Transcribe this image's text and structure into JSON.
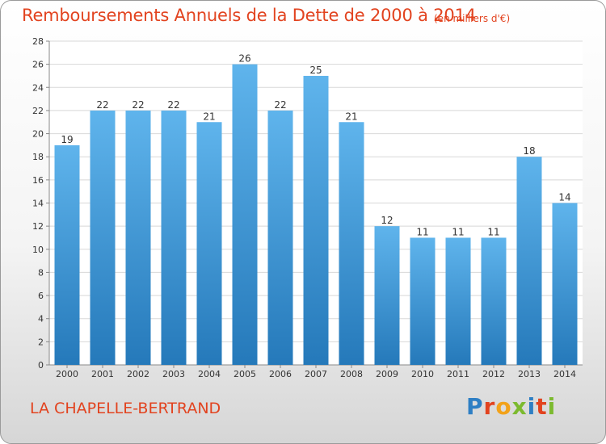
{
  "header": {
    "title": "Remboursements Annuels de la Dette de 2000 à 2014",
    "unit": "(en milliers d'€)"
  },
  "footer": {
    "commune": "LA CHAPELLE-BERTRAND",
    "logo": "Proxiti"
  },
  "colors": {
    "title": "#e2431f",
    "bar_top": "#5fb4ec",
    "bar_bottom": "#2579ba"
  },
  "chart_data": {
    "type": "bar",
    "title": "Remboursements Annuels de la Dette de 2000 à 2014",
    "xlabel": "",
    "ylabel": "",
    "categories": [
      "2000",
      "2001",
      "2002",
      "2003",
      "2004",
      "2005",
      "2006",
      "2007",
      "2008",
      "2009",
      "2010",
      "2011",
      "2012",
      "2013",
      "2014"
    ],
    "values": [
      19,
      22,
      22,
      22,
      21,
      26,
      22,
      25,
      21,
      12,
      11,
      11,
      11,
      18,
      14
    ],
    "ylim": [
      0,
      28
    ],
    "yticks": [
      0,
      2,
      4,
      6,
      8,
      10,
      12,
      14,
      16,
      18,
      20,
      22,
      24,
      26,
      28
    ],
    "grid": true
  }
}
